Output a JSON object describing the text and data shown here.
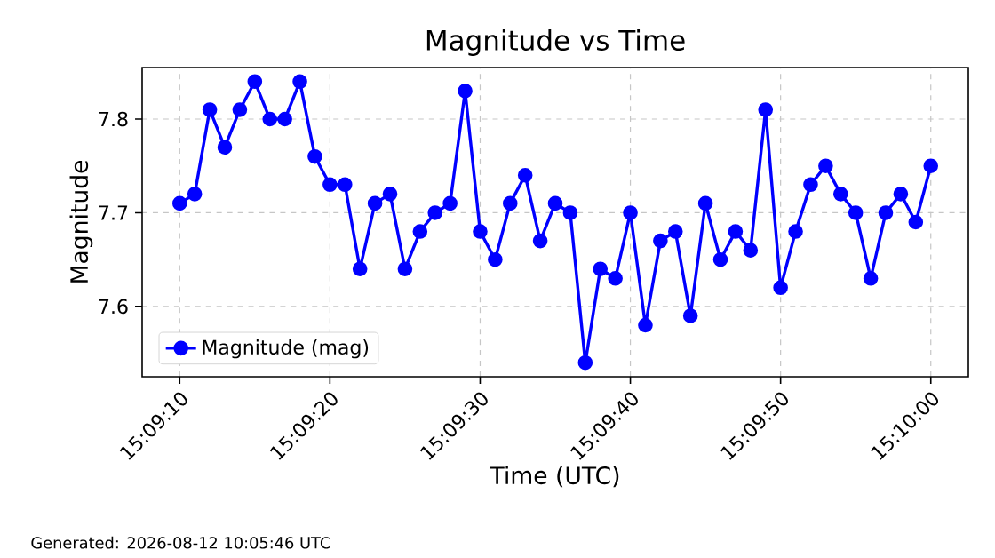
{
  "chart_data": {
    "type": "line",
    "title": "Magnitude vs Time",
    "xlabel": "Time (UTC)",
    "ylabel": "Magnitude",
    "annotations": [
      "Generated: 2026-08-12 10:05:46 UTC"
    ],
    "x": [
      15.1527778,
      15.1530556,
      15.1533333,
      15.1536111,
      15.1538889,
      15.1541667,
      15.1544444,
      15.1547222,
      15.155,
      15.1552778,
      15.1555556,
      15.1558333,
      15.1561111,
      15.1563889,
      15.1566667,
      15.1569444,
      15.1572222,
      15.1575,
      15.1577778,
      15.1580556,
      15.1583333,
      15.1586111,
      15.1588889,
      15.1591667,
      15.1594444,
      15.1597222,
      15.16,
      15.1602778,
      15.1605556,
      15.1608333,
      15.1611111,
      15.1613889,
      15.1616667,
      15.1619444,
      15.1622222,
      15.1625,
      15.1627778,
      15.1630556,
      15.1633333,
      15.1636111,
      15.1638889,
      15.1641667,
      15.1644444,
      15.1647222,
      15.165,
      15.1652778,
      15.1655556,
      15.1658333,
      15.1661111,
      15.1663889,
      15.1666667
    ],
    "series": [
      {
        "name": "Magnitude (mag)",
        "color": "#0000ff",
        "values": [
          7.71,
          7.72,
          7.81,
          7.77,
          7.81,
          7.84,
          7.8,
          7.8,
          7.84,
          7.76,
          7.73,
          7.73,
          7.64,
          7.71,
          7.72,
          7.64,
          7.68,
          7.7,
          7.71,
          7.83,
          7.68,
          7.65,
          7.71,
          7.74,
          7.67,
          7.71,
          7.7,
          7.54,
          7.64,
          7.63,
          7.7,
          7.58,
          7.67,
          7.68,
          7.59,
          7.71,
          7.65,
          7.68,
          7.66,
          7.81,
          7.62,
          7.68,
          7.73,
          7.75,
          7.72,
          7.7,
          7.63,
          7.7,
          7.72,
          7.69,
          7.75
        ]
      }
    ],
    "xlim": [
      15.1520833,
      15.1673611
    ],
    "ylim": [
      7.525,
      7.855
    ],
    "xticks": [
      {
        "value": 15.1527778,
        "label": "15:09:10"
      },
      {
        "value": 15.1555556,
        "label": "15:09:20"
      },
      {
        "value": 15.1583333,
        "label": "15:09:30"
      },
      {
        "value": 15.1611111,
        "label": "15:09:40"
      },
      {
        "value": 15.1638889,
        "label": "15:09:50"
      },
      {
        "value": 15.1666667,
        "label": "15:10:00"
      }
    ],
    "yticks": [
      7.6,
      7.7,
      7.8
    ],
    "grid": true,
    "legend": "bottom left",
    "marker": "circle",
    "line_style": "solid"
  }
}
